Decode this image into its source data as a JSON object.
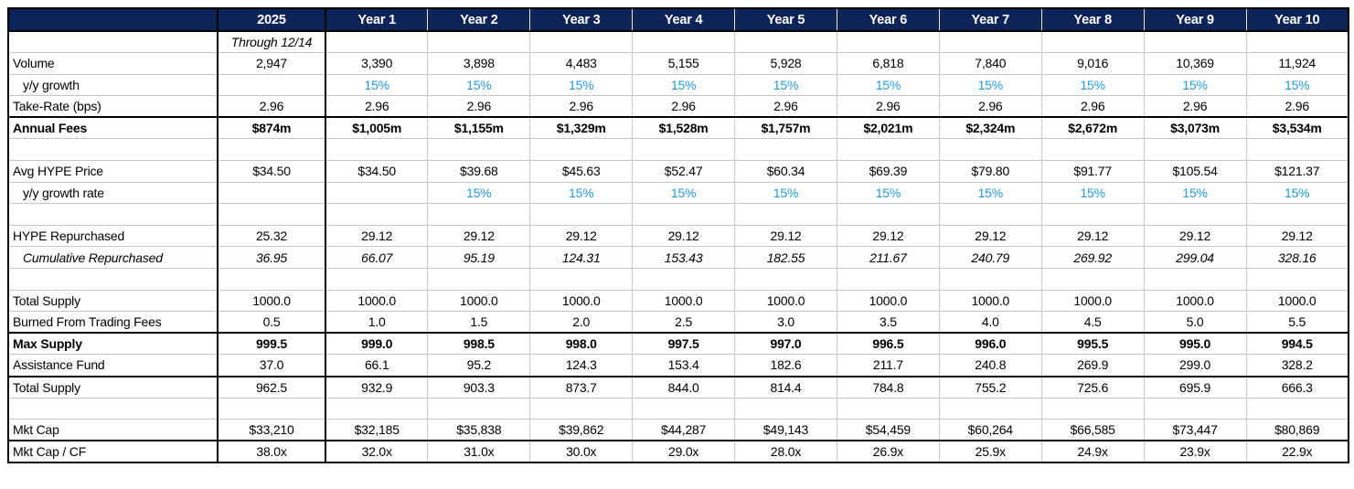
{
  "colors": {
    "header_bg": "#0e2456",
    "header_text": "#ffffff",
    "growth_blue": "#1f99e0",
    "grid_line": "#c6c6c6",
    "frame_border": "#000000"
  },
  "table": {
    "header": {
      "corner": "",
      "columns": [
        "2025",
        "Year 1",
        "Year 2",
        "Year 3",
        "Year 4",
        "Year 5",
        "Year 6",
        "Year 7",
        "Year 8",
        "Year 9",
        "Year 10"
      ]
    },
    "rows": [
      {
        "key": "period-note",
        "label": "",
        "italic": true,
        "values": [
          "Through 12/14",
          "",
          "",
          "",
          "",
          "",
          "",
          "",
          "",
          "",
          ""
        ]
      },
      {
        "key": "volume",
        "label": "Volume",
        "values": [
          "2,947",
          "3,390",
          "3,898",
          "4,483",
          "5,155",
          "5,928",
          "6,818",
          "7,840",
          "9,016",
          "10,369",
          "11,924"
        ]
      },
      {
        "key": "volume-yoy-growth",
        "label": "y/y growth",
        "indent": true,
        "blue": true,
        "values": [
          "",
          "15%",
          "15%",
          "15%",
          "15%",
          "15%",
          "15%",
          "15%",
          "15%",
          "15%",
          "15%"
        ]
      },
      {
        "key": "take-rate",
        "label": "Take-Rate (bps)",
        "values": [
          "2.96",
          "2.96",
          "2.96",
          "2.96",
          "2.96",
          "2.96",
          "2.96",
          "2.96",
          "2.96",
          "2.96",
          "2.96"
        ]
      },
      {
        "key": "annual-fees",
        "label": "Annual Fees",
        "bold": true,
        "thick_top": true,
        "values": [
          "$874m",
          "$1,005m",
          "$1,155m",
          "$1,329m",
          "$1,528m",
          "$1,757m",
          "$2,021m",
          "$2,324m",
          "$2,672m",
          "$3,073m",
          "$3,534m"
        ]
      },
      {
        "key": "blank-1",
        "label": "",
        "values": [
          "",
          "",
          "",
          "",
          "",
          "",
          "",
          "",
          "",
          "",
          ""
        ]
      },
      {
        "key": "avg-hype-price",
        "label": "Avg HYPE Price",
        "values": [
          "$34.50",
          "$34.50",
          "$39.68",
          "$45.63",
          "$52.47",
          "$60.34",
          "$69.39",
          "$79.80",
          "$91.77",
          "$105.54",
          "$121.37"
        ]
      },
      {
        "key": "price-yoy-growth-rate",
        "label": "y/y growth rate",
        "indent": true,
        "blue": true,
        "values": [
          "",
          "",
          "15%",
          "15%",
          "15%",
          "15%",
          "15%",
          "15%",
          "15%",
          "15%",
          "15%"
        ]
      },
      {
        "key": "blank-2",
        "label": "",
        "values": [
          "",
          "",
          "",
          "",
          "",
          "",
          "",
          "",
          "",
          "",
          ""
        ]
      },
      {
        "key": "hype-repurchased",
        "label": "HYPE Repurchased",
        "values": [
          "25.32",
          "29.12",
          "29.12",
          "29.12",
          "29.12",
          "29.12",
          "29.12",
          "29.12",
          "29.12",
          "29.12",
          "29.12"
        ]
      },
      {
        "key": "cumulative-repurchased",
        "label": "Cumulative Repurchased",
        "indent": true,
        "italic": true,
        "values": [
          "36.95",
          "66.07",
          "95.19",
          "124.31",
          "153.43",
          "182.55",
          "211.67",
          "240.79",
          "269.92",
          "299.04",
          "328.16"
        ]
      },
      {
        "key": "blank-3",
        "label": "",
        "values": [
          "",
          "",
          "",
          "",
          "",
          "",
          "",
          "",
          "",
          "",
          ""
        ]
      },
      {
        "key": "total-supply",
        "label": "Total Supply",
        "values": [
          "1000.0",
          "1000.0",
          "1000.0",
          "1000.0",
          "1000.0",
          "1000.0",
          "1000.0",
          "1000.0",
          "1000.0",
          "1000.0",
          "1000.0"
        ]
      },
      {
        "key": "burned-from-trading-fees",
        "label": "Burned From Trading Fees",
        "values": [
          "0.5",
          "1.0",
          "1.5",
          "2.0",
          "2.5",
          "3.0",
          "3.5",
          "4.0",
          "4.5",
          "5.0",
          "5.5"
        ]
      },
      {
        "key": "max-supply",
        "label": "Max Supply",
        "bold": true,
        "thick_top": true,
        "values": [
          "999.5",
          "999.0",
          "998.5",
          "998.0",
          "997.5",
          "997.0",
          "996.5",
          "996.0",
          "995.5",
          "995.0",
          "994.5"
        ]
      },
      {
        "key": "assistance-fund",
        "label": "Assistance Fund",
        "values": [
          "37.0",
          "66.1",
          "95.2",
          "124.3",
          "153.4",
          "182.6",
          "211.7",
          "240.8",
          "269.9",
          "299.0",
          "328.2"
        ]
      },
      {
        "key": "total-supply-net",
        "label": "Total Supply",
        "thick_top": true,
        "values": [
          "962.5",
          "932.9",
          "903.3",
          "873.7",
          "844.0",
          "814.4",
          "784.8",
          "755.2",
          "725.6",
          "695.9",
          "666.3"
        ]
      },
      {
        "key": "blank-4",
        "label": "",
        "values": [
          "",
          "",
          "",
          "",
          "",
          "",
          "",
          "",
          "",
          "",
          ""
        ]
      },
      {
        "key": "mkt-cap",
        "label": "Mkt Cap",
        "values": [
          "$33,210",
          "$32,185",
          "$35,838",
          "$39,862",
          "$44,287",
          "$49,143",
          "$54,459",
          "$60,264",
          "$66,585",
          "$73,447",
          "$80,869"
        ]
      },
      {
        "key": "mkt-cap-cf",
        "label": "Mkt Cap / CF",
        "thick_top": true,
        "values": [
          "38.0x",
          "32.0x",
          "31.0x",
          "30.0x",
          "29.0x",
          "28.0x",
          "26.9x",
          "25.9x",
          "24.9x",
          "23.9x",
          "22.9x"
        ]
      }
    ]
  }
}
